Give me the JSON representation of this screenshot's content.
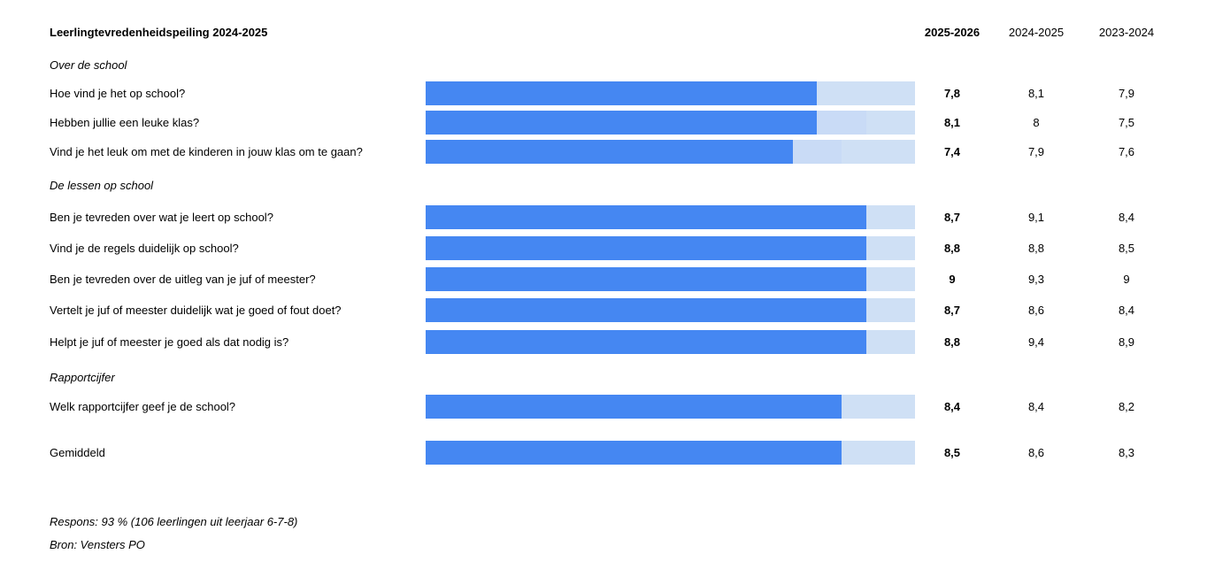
{
  "title": "Leerlingtevredenheidspeiling 2024-2025",
  "years": [
    "2025-2026",
    "2024-2025",
    "2023-2024"
  ],
  "colors": {
    "bar_current": "#4587f2",
    "bar_range": "#c9dbf6",
    "bar_track": "#cfe0f5"
  },
  "sections": [
    {
      "label": "Over de school",
      "rows": [
        {
          "question": "Hoe vind je het op school?",
          "current": "7,8",
          "prev": "8,1",
          "prev2": "7,9",
          "fill": 0.8,
          "mid": 0.8
        },
        {
          "question": "Hebben jullie een leuke klas?",
          "current": "8,1",
          "prev": "8",
          "prev2": "7,5",
          "fill": 0.8,
          "mid": 0.9
        },
        {
          "question": "Vind je het leuk om met de kinderen in jouw klas om te gaan?",
          "current": "7,4",
          "prev": "7,9",
          "prev2": "7,6",
          "fill": 0.75,
          "mid": 0.85
        }
      ]
    },
    {
      "label": "De lessen op school",
      "rows": [
        {
          "question": "Ben je tevreden over wat je leert op school?",
          "current": "8,7",
          "prev": "9,1",
          "prev2": "8,4",
          "fill": 0.9,
          "mid": 0.9
        },
        {
          "question": "Vind je de regels duidelijk op school?",
          "current": "8,8",
          "prev": "8,8",
          "prev2": "8,5",
          "fill": 0.9,
          "mid": 0.9
        },
        {
          "question": "Ben je tevreden over de uitleg van je juf of meester?",
          "current": "9",
          "prev": "9,3",
          "prev2": "9",
          "fill": 0.9,
          "mid": 0.9
        },
        {
          "question": "Vertelt je juf of meester duidelijk wat je goed of fout doet?",
          "current": "8,7",
          "prev": "8,6",
          "prev2": "8,4",
          "fill": 0.9,
          "mid": 0.9
        },
        {
          "question": "Helpt je juf of meester je goed als dat nodig is?",
          "current": "8,8",
          "prev": "9,4",
          "prev2": "8,9",
          "fill": 0.9,
          "mid": 0.9
        }
      ]
    },
    {
      "label": "Rapportcijfer",
      "rows": [
        {
          "question": "Welk rapportcijfer geef je de school?",
          "current": "8,4",
          "prev": "8,4",
          "prev2": "8,2",
          "fill": 0.85,
          "mid": 0.85
        }
      ]
    }
  ],
  "average": {
    "question": "Gemiddeld",
    "current": "8,5",
    "prev": "8,6",
    "prev2": "8,3",
    "fill": 0.85,
    "mid": 0.85
  },
  "footer": {
    "response": "Respons: 93 % (106 leerlingen uit leerjaar 6-7-8)",
    "source": "Bron: Vensters PO"
  },
  "chart_data": {
    "type": "bar",
    "title": "Leerlingtevredenheidspeiling 2024-2025",
    "categories": [
      "Hoe vind je het op school?",
      "Hebben jullie een leuke klas?",
      "Vind je het leuk om met de kinderen in jouw klas om te gaan?",
      "Ben je tevreden over wat je leert op school?",
      "Vind je de regels duidelijk op school?",
      "Ben je tevreden over de uitleg van je juf of meester?",
      "Vertelt je juf of meester duidelijk wat je goed of fout doet?",
      "Helpt je juf of meester je goed als dat nodig is?",
      "Welk rapportcijfer geef je de school?",
      "Gemiddeld"
    ],
    "series": [
      {
        "name": "2025-2026",
        "values": [
          7.8,
          8.1,
          7.4,
          8.7,
          8.8,
          9,
          8.7,
          8.8,
          8.4,
          8.5
        ]
      },
      {
        "name": "2024-2025",
        "values": [
          8.1,
          8,
          7.9,
          9.1,
          8.8,
          9.3,
          8.6,
          9.4,
          8.4,
          8.6
        ]
      },
      {
        "name": "2023-2024",
        "values": [
          7.9,
          7.5,
          7.6,
          8.4,
          8.5,
          9,
          8.4,
          8.9,
          8.2,
          8.3
        ]
      }
    ]
  }
}
